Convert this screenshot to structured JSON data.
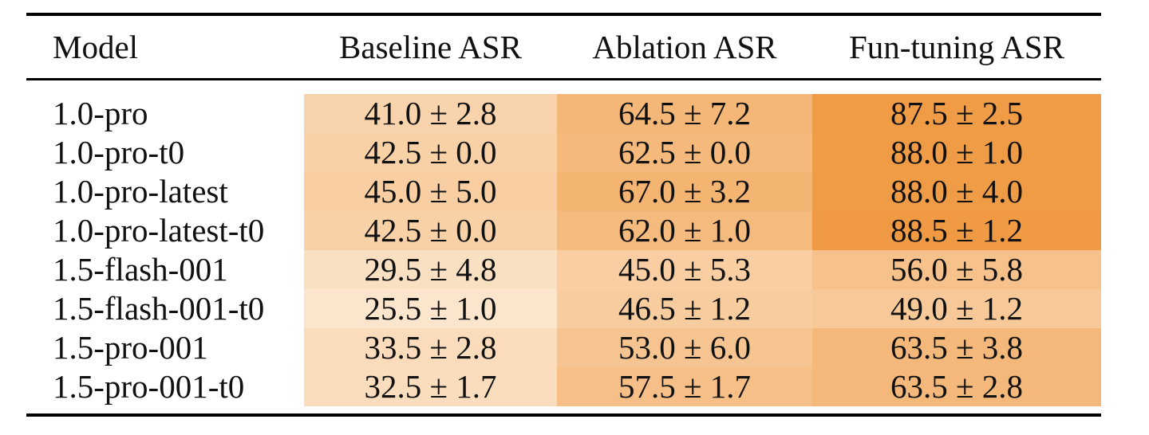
{
  "table": {
    "headers": {
      "model": "Model",
      "baseline": "Baseline ASR",
      "ablation": "Ablation ASR",
      "fun_tuning": "Fun-tuning ASR"
    },
    "rows": [
      {
        "model": "1.0-pro",
        "baseline": "41.0 ± 2.8",
        "ablation": "64.5 ± 7.2",
        "fun_tuning": "87.5 ± 2.5"
      },
      {
        "model": "1.0-pro-t0",
        "baseline": "42.5 ± 0.0",
        "ablation": "62.5 ± 0.0",
        "fun_tuning": "88.0 ± 1.0"
      },
      {
        "model": "1.0-pro-latest",
        "baseline": "45.0 ± 5.0",
        "ablation": "67.0 ± 3.2",
        "fun_tuning": "88.0 ± 4.0"
      },
      {
        "model": "1.0-pro-latest-t0",
        "baseline": "42.5 ± 0.0",
        "ablation": "62.0 ± 1.0",
        "fun_tuning": "88.5 ± 1.2"
      },
      {
        "model": "1.5-flash-001",
        "baseline": "29.5 ± 4.8",
        "ablation": "45.0 ± 5.3",
        "fun_tuning": "56.0 ± 5.8"
      },
      {
        "model": "1.5-flash-001-t0",
        "baseline": "25.5 ± 1.0",
        "ablation": "46.5 ± 1.2",
        "fun_tuning": "49.0 ± 1.2"
      },
      {
        "model": "1.5-pro-001",
        "baseline": "33.5 ± 2.8",
        "ablation": "53.0 ± 6.0",
        "fun_tuning": "63.5 ± 3.8"
      },
      {
        "model": "1.5-pro-001-t0",
        "baseline": "32.5 ± 1.7",
        "ablation": "57.5 ± 1.7",
        "fun_tuning": "63.5 ± 2.8"
      }
    ]
  },
  "heatmap_colors": {
    "low": "#fbe5cc",
    "high": "#f09a44"
  }
}
